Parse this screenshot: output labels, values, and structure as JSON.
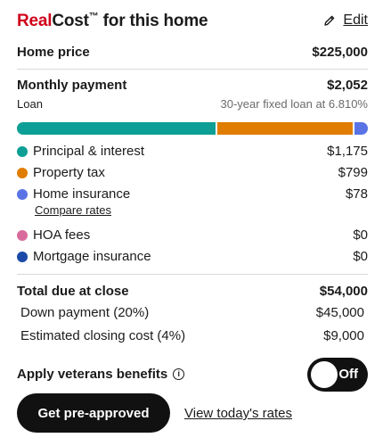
{
  "header": {
    "brand": "Real",
    "brand_rest": "Cost",
    "trademark": "™",
    "title_suffix": " for this home",
    "edit_label": "Edit"
  },
  "home_price": {
    "label": "Home price",
    "value": "$225,000"
  },
  "monthly": {
    "label": "Monthly payment",
    "value": "$2,052",
    "loan_label": "Loan",
    "loan_detail": "30-year fixed loan at 6.810%"
  },
  "breakdown_colors": {
    "principal": "#0d9f96",
    "tax": "#e07d00",
    "insurance": "#5a74e6",
    "hoa": "#d96b9c",
    "mortgage_ins": "#1b4aa8"
  },
  "breakdown": {
    "principal": {
      "label": "Principal & interest",
      "value": "$1,175",
      "amount": 1175
    },
    "tax": {
      "label": "Property tax",
      "value": "$799",
      "amount": 799
    },
    "insurance": {
      "label": "Home insurance",
      "value": "$78",
      "amount": 78
    },
    "compare_label": "Compare rates",
    "hoa": {
      "label": "HOA fees",
      "value": "$0",
      "amount": 0
    },
    "mortgage_ins": {
      "label": "Mortgage insurance",
      "value": "$0",
      "amount": 0
    }
  },
  "closing": {
    "label": "Total due at close",
    "value": "$54,000",
    "down_label": "Down payment (20%)",
    "down_value": "$45,000",
    "cost_label": "Estimated closing cost (4%)",
    "cost_value": "$9,000"
  },
  "veterans": {
    "label": "Apply veterans benefits",
    "info_icon": "info-icon",
    "toggle_state": "Off"
  },
  "actions": {
    "primary": "Get pre-approved",
    "secondary": "View today's rates"
  }
}
